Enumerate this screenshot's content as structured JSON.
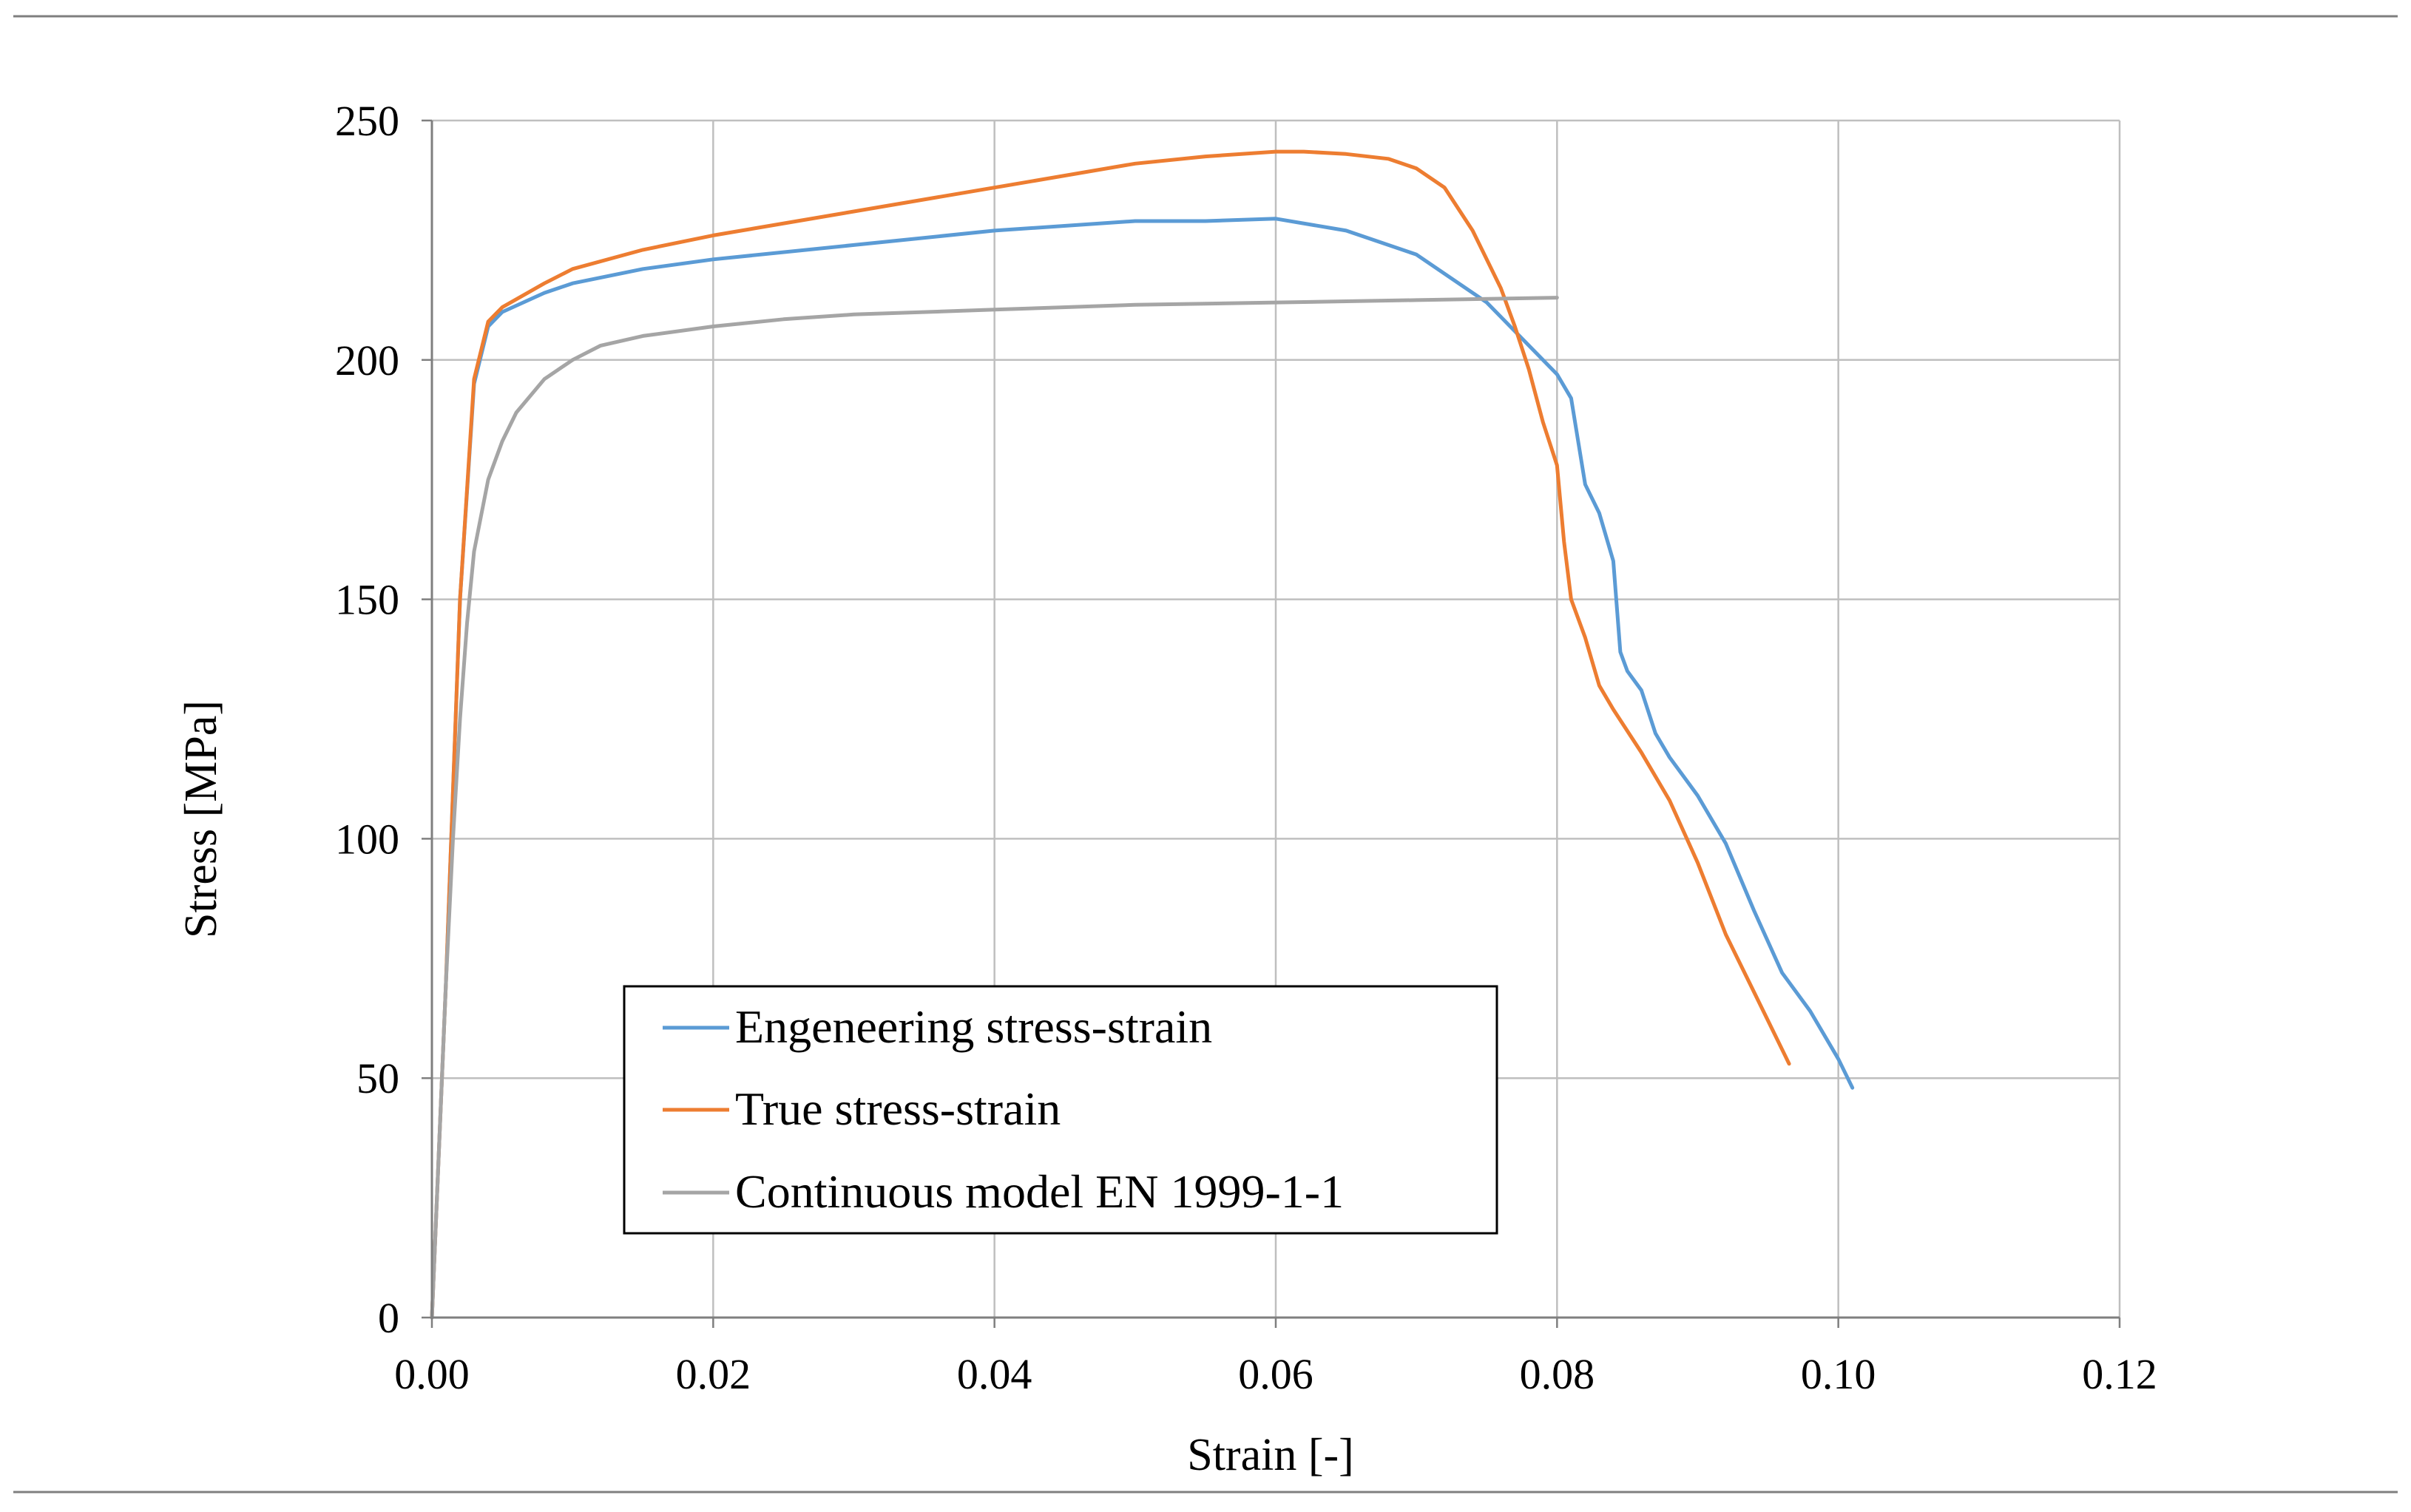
{
  "chart_data": {
    "type": "line",
    "title": "",
    "xlabel": "Strain [-]",
    "ylabel": "Stress [MPa]",
    "xlim": [
      0,
      0.12
    ],
    "ylim": [
      0,
      250
    ],
    "grid": true,
    "xticks": [
      "0.00",
      "0.02",
      "0.04",
      "0.06",
      "0.08",
      "0.10",
      "0.12"
    ],
    "yticks": [
      "0",
      "50",
      "100",
      "150",
      "200",
      "250"
    ],
    "legend_position": "lower-center",
    "series": [
      {
        "name": "Engeneering stress-strain",
        "color": "#5b9bd5",
        "x": [
          0.0,
          0.001,
          0.002,
          0.003,
          0.004,
          0.005,
          0.008,
          0.01,
          0.015,
          0.02,
          0.03,
          0.04,
          0.05,
          0.055,
          0.06,
          0.065,
          0.07,
          0.075,
          0.078,
          0.08,
          0.081,
          0.082,
          0.083,
          0.084,
          0.0845,
          0.085,
          0.086,
          0.087,
          0.088,
          0.09,
          0.092,
          0.094,
          0.096,
          0.098,
          0.1,
          0.101
        ],
        "y": [
          0,
          70,
          150,
          195,
          207,
          210,
          214,
          216,
          219,
          221,
          224,
          227,
          229,
          229,
          229.5,
          227,
          222,
          212,
          203,
          197,
          192,
          174,
          168,
          158,
          139,
          135,
          131,
          122,
          117,
          109,
          99,
          85,
          72,
          64,
          54,
          48
        ]
      },
      {
        "name": "True stress-strain",
        "color": "#ed7d31",
        "x": [
          0.0,
          0.001,
          0.002,
          0.003,
          0.004,
          0.005,
          0.008,
          0.01,
          0.015,
          0.02,
          0.03,
          0.04,
          0.05,
          0.055,
          0.06,
          0.062,
          0.065,
          0.068,
          0.07,
          0.072,
          0.074,
          0.076,
          0.077,
          0.078,
          0.079,
          0.08,
          0.0805,
          0.081,
          0.082,
          0.083,
          0.084,
          0.086,
          0.088,
          0.09,
          0.092,
          0.094,
          0.096,
          0.0965
        ],
        "y": [
          0,
          70,
          150,
          196,
          208,
          211,
          216,
          219,
          223,
          226,
          231,
          236,
          241,
          242.5,
          243.5,
          243.5,
          243,
          242,
          240,
          236,
          227,
          215,
          207,
          198,
          187,
          178,
          162,
          150,
          142,
          132,
          127,
          118,
          108,
          95,
          80,
          68,
          56,
          53
        ]
      },
      {
        "name": "Continuous model EN 1999-1-1",
        "color": "#a5a5a5",
        "x": [
          0.0,
          0.0005,
          0.001,
          0.0015,
          0.002,
          0.0025,
          0.003,
          0.004,
          0.005,
          0.006,
          0.008,
          0.01,
          0.012,
          0.015,
          0.02,
          0.025,
          0.03,
          0.04,
          0.05,
          0.06,
          0.07,
          0.08
        ],
        "y": [
          0,
          35,
          70,
          100,
          125,
          145,
          160,
          175,
          183,
          189,
          196,
          200,
          203,
          205,
          207,
          208.5,
          209.5,
          210.5,
          211.5,
          212,
          212.5,
          213
        ]
      }
    ]
  }
}
